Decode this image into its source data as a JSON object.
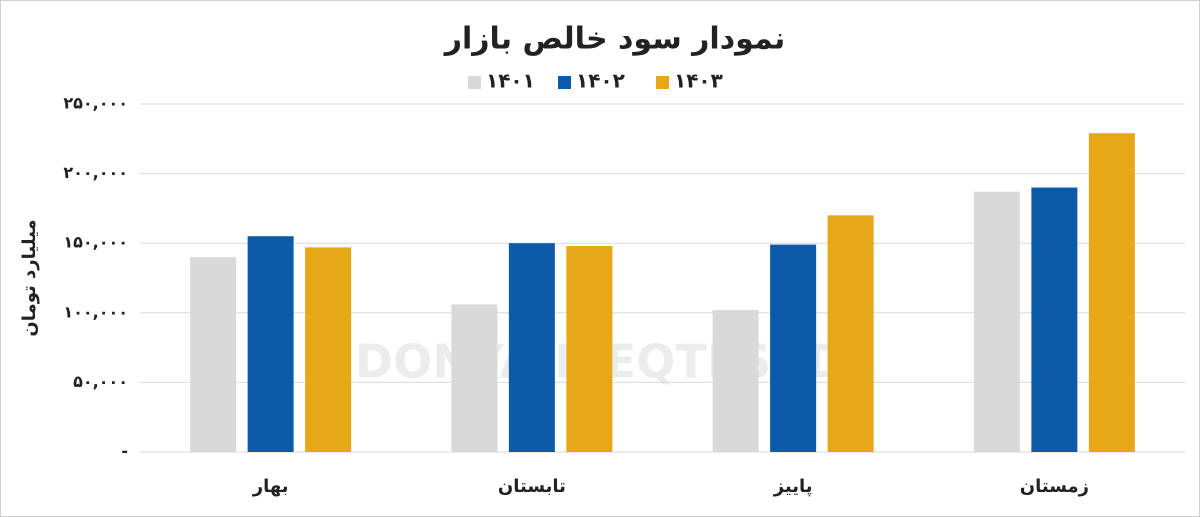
{
  "chart_data": {
    "type": "bar",
    "title": "نمودار سود خالص بازار",
    "y_label": "میلیارد تومان",
    "watermark": "DONYA-E-EQTESAD",
    "categories": [
      "بهار",
      "تابستان",
      "پاییز",
      "زمستان"
    ],
    "series": [
      {
        "name": "۱۴۰۱",
        "color": "#d9d9d9",
        "values": [
          140000,
          106000,
          102000,
          187000
        ]
      },
      {
        "name": "۱۴۰۲",
        "color": "#0b5ba8",
        "values": [
          155000,
          150000,
          149000,
          190000
        ]
      },
      {
        "name": "۱۴۰۳",
        "color": "#e6a817",
        "values": [
          147000,
          148000,
          170000,
          229000
        ]
      }
    ],
    "ylim": [
      0,
      250000
    ],
    "yticks": [
      {
        "value": 0,
        "label": "-"
      },
      {
        "value": 50000,
        "label": "۵۰,۰۰۰"
      },
      {
        "value": 100000,
        "label": "۱۰۰,۰۰۰"
      },
      {
        "value": 150000,
        "label": "۱۵۰,۰۰۰"
      },
      {
        "value": 200000,
        "label": "۲۰۰,۰۰۰"
      },
      {
        "value": 250000,
        "label": "۲۵۰,۰۰۰"
      }
    ],
    "grid": true
  }
}
